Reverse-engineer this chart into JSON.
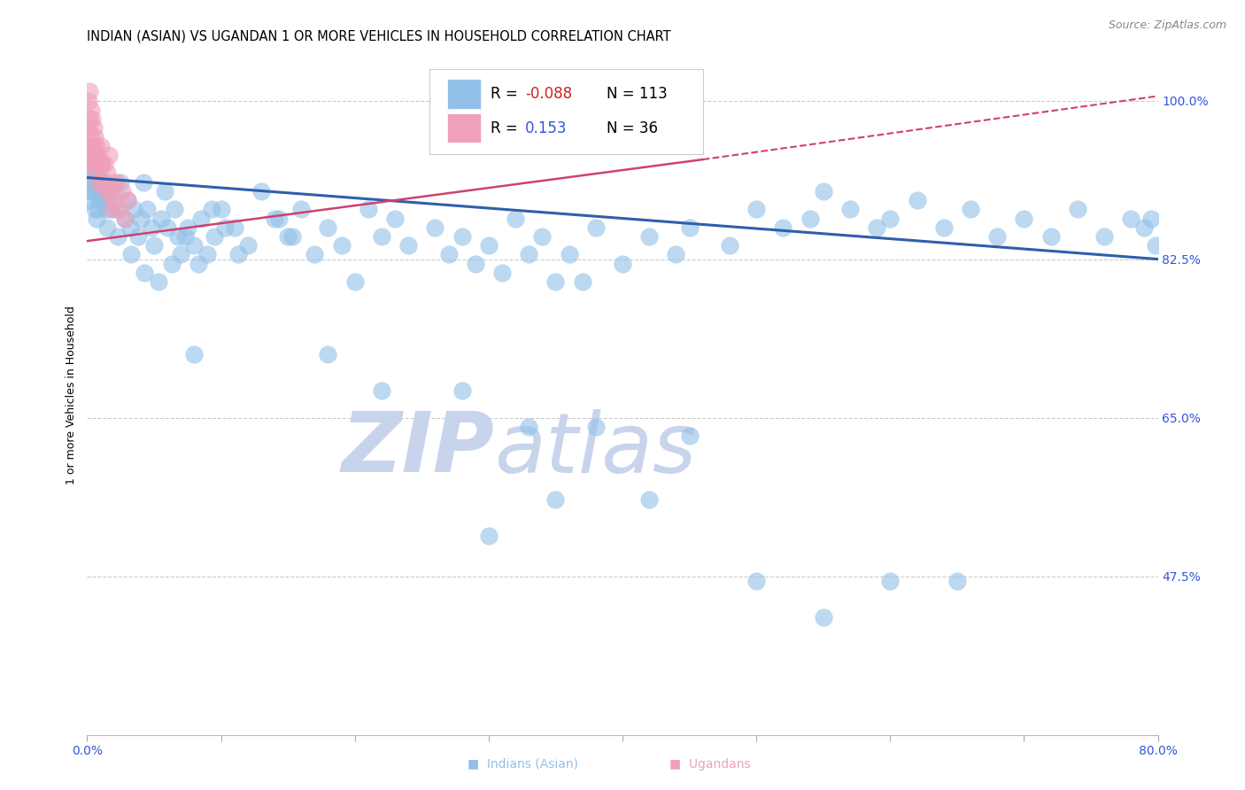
{
  "title": "INDIAN (ASIAN) VS UGANDAN 1 OR MORE VEHICLES IN HOUSEHOLD CORRELATION CHART",
  "source_text": "Source: ZipAtlas.com",
  "ylabel": "1 or more Vehicles in Household",
  "xlim": [
    0.0,
    0.8
  ],
  "ylim": [
    0.3,
    1.05
  ],
  "yticks": [
    0.475,
    0.65,
    0.825,
    1.0
  ],
  "ytick_labels": [
    "47.5%",
    "65.0%",
    "82.5%",
    "100.0%"
  ],
  "legend_r_indian": "-0.088",
  "legend_n_indian": "113",
  "legend_r_ugandan": "0.153",
  "legend_n_ugandan": "36",
  "indian_color": "#92C0E8",
  "ugandan_color": "#F0A0B8",
  "trend_indian_color": "#2F5FAA",
  "trend_ugandan_color": "#D04070",
  "r_value_color": "#CC2222",
  "n_value_color": "#000000",
  "r2_value_color": "#3355DD",
  "watermark_zip": "ZIP",
  "watermark_atlas": "atlas",
  "watermark_color": "#C8D4EC",
  "background_color": "#FFFFFF",
  "grid_color": "#CCCCCC",
  "tick_color": "#3355DD",
  "title_fontsize": 10.5,
  "axis_label_fontsize": 9,
  "tick_fontsize": 10,
  "legend_fontsize": 12,
  "source_fontsize": 9
}
